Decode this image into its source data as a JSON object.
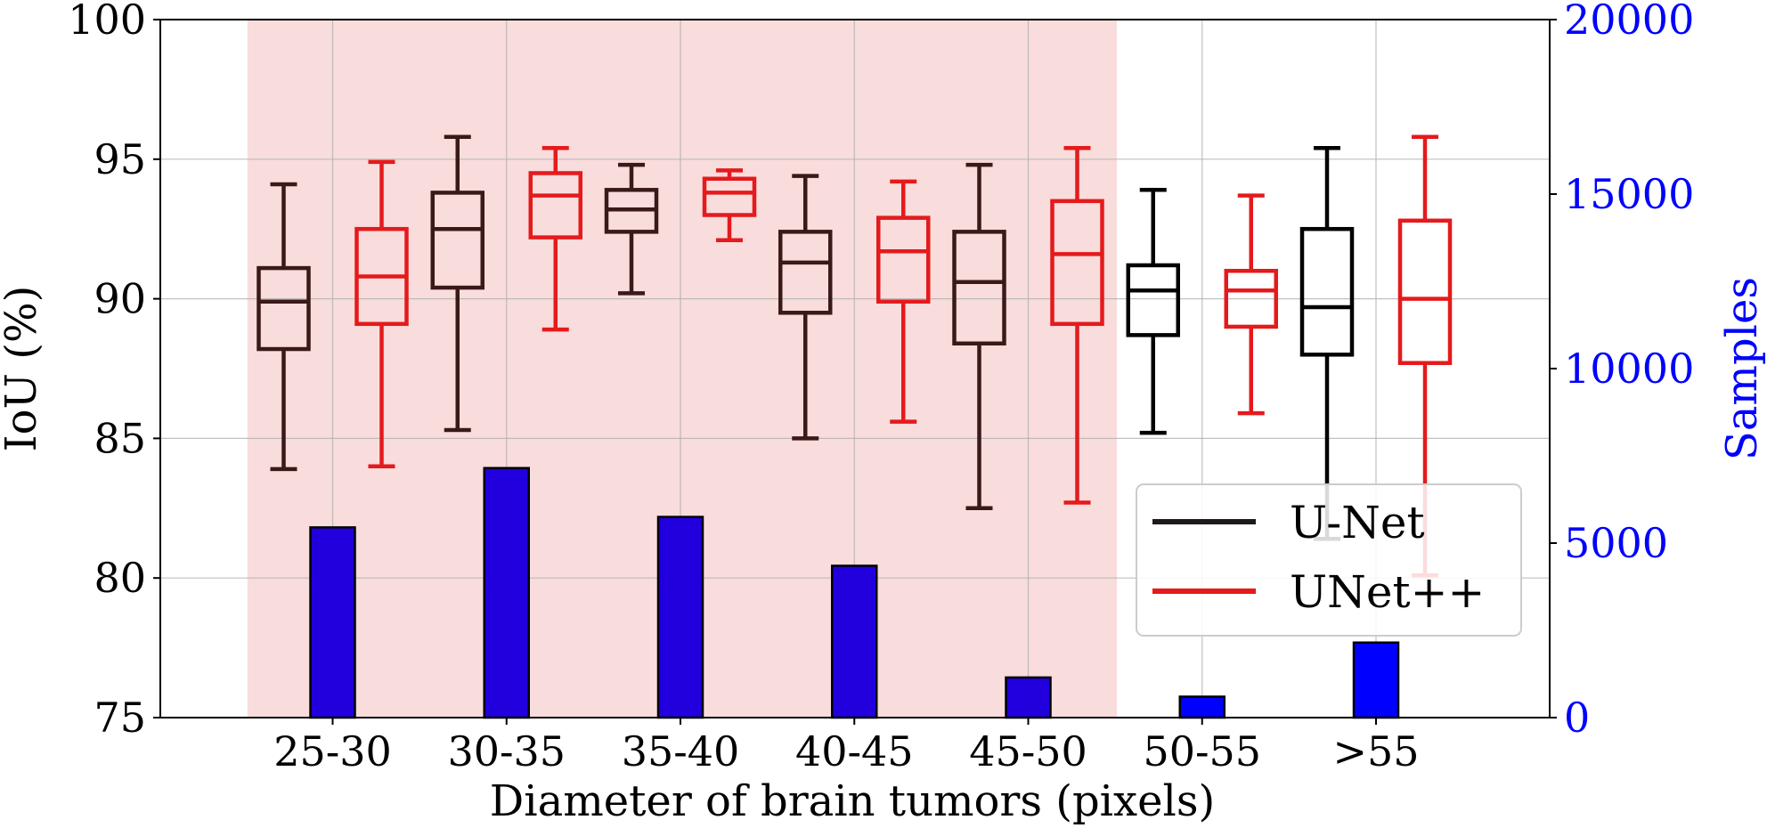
{
  "chart_data": {
    "type": "box",
    "xlabel": "Diameter of brain tumors (pixels)",
    "ylabel_left": "IoU (%)",
    "ylabel_right": "Samples",
    "ylim_left": [
      75,
      100
    ],
    "ylim_right": [
      0,
      20000
    ],
    "yticks_left": [
      "75",
      "80",
      "85",
      "90",
      "95",
      "100"
    ],
    "yticks_right": [
      "0",
      "5000",
      "10000",
      "15000",
      "20000"
    ],
    "categories": [
      "25-30",
      "30-35",
      "35-40",
      "40-45",
      "45-50",
      "50-55",
      ">55"
    ],
    "highlight_region": {
      "from_category": "25-30",
      "to_category": "45-50",
      "color": "#f9dcdc"
    },
    "grid": true,
    "legend_position": "lower-right",
    "colors": {
      "U-Net": "#3a1a18",
      "U-Net (outside shaded region)": "#000000",
      "UNet++": "#e41a1c",
      "samples_bar": "#2200dd",
      "samples_bar_outside": "#0000ff",
      "right_axis": "#0000ff"
    },
    "series": [
      {
        "name": "U-Net",
        "boxes": [
          {
            "whisker_low": 83.9,
            "q1": 88.2,
            "median": 89.9,
            "q3": 91.1,
            "whisker_high": 94.1
          },
          {
            "whisker_low": 85.3,
            "q1": 90.4,
            "median": 92.5,
            "q3": 93.8,
            "whisker_high": 95.8
          },
          {
            "whisker_low": 90.2,
            "q1": 92.4,
            "median": 93.2,
            "q3": 93.9,
            "whisker_high": 94.8
          },
          {
            "whisker_low": 85.0,
            "q1": 89.5,
            "median": 91.3,
            "q3": 92.4,
            "whisker_high": 94.4
          },
          {
            "whisker_low": 82.5,
            "q1": 88.4,
            "median": 90.6,
            "q3": 92.4,
            "whisker_high": 94.8
          },
          {
            "whisker_low": 85.2,
            "q1": 88.7,
            "median": 90.3,
            "q3": 91.2,
            "whisker_high": 93.9
          },
          {
            "whisker_low": 81.4,
            "q1": 88.0,
            "median": 89.7,
            "q3": 92.5,
            "whisker_high": 95.4
          }
        ]
      },
      {
        "name": "UNet++",
        "boxes": [
          {
            "whisker_low": 84.0,
            "q1": 89.1,
            "median": 90.8,
            "q3": 92.5,
            "whisker_high": 94.9
          },
          {
            "whisker_low": 88.9,
            "q1": 92.2,
            "median": 93.7,
            "q3": 94.5,
            "whisker_high": 95.4
          },
          {
            "whisker_low": 92.1,
            "q1": 93.0,
            "median": 93.8,
            "q3": 94.3,
            "whisker_high": 94.6
          },
          {
            "whisker_low": 85.6,
            "q1": 89.9,
            "median": 91.7,
            "q3": 92.9,
            "whisker_high": 94.2
          },
          {
            "whisker_low": 82.7,
            "q1": 89.1,
            "median": 91.6,
            "q3": 93.5,
            "whisker_high": 95.4
          },
          {
            "whisker_low": 85.9,
            "q1": 89.0,
            "median": 90.3,
            "q3": 91.0,
            "whisker_high": 93.7
          },
          {
            "whisker_low": 80.1,
            "q1": 87.7,
            "median": 90.0,
            "q3": 92.8,
            "whisker_high": 95.8
          }
        ]
      }
    ],
    "samples": [
      5450,
      7150,
      5750,
      4350,
      1150,
      600,
      2150
    ],
    "legend": [
      "U-Net",
      "UNet++"
    ]
  }
}
